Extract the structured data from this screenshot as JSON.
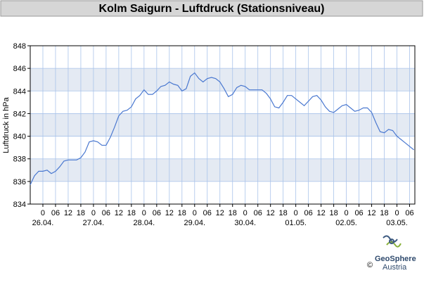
{
  "chart_data": {
    "type": "line",
    "title": "Kolm Saigurn - Luftdruck (Stationsniveau)",
    "y_label": "Luftdruck in hPa",
    "x": [
      -6,
      -4,
      -2,
      0,
      2,
      4,
      6,
      8,
      10,
      12,
      14,
      16,
      18,
      20,
      22,
      24,
      26,
      28,
      30,
      32,
      34,
      36,
      38,
      40,
      42,
      44,
      46,
      48,
      50,
      52,
      54,
      56,
      58,
      60,
      62,
      64,
      66,
      68,
      70,
      72,
      74,
      76,
      78,
      80,
      82,
      84,
      86,
      88,
      90,
      92,
      94,
      96,
      98,
      100,
      102,
      104,
      106,
      108,
      110,
      112,
      114,
      116,
      118,
      120,
      122,
      124,
      126,
      128,
      130,
      132,
      134,
      136,
      138,
      140,
      142,
      144,
      146,
      148,
      150,
      152,
      154,
      156,
      158,
      160,
      162,
      164,
      166,
      168,
      170,
      172,
      174,
      176
    ],
    "series": [
      {
        "name": "Luftdruck",
        "color": "#4a78d0",
        "values": [
          835.7,
          836.5,
          836.9,
          836.9,
          837.0,
          836.7,
          836.9,
          837.3,
          837.8,
          837.9,
          837.9,
          837.9,
          838.1,
          838.6,
          839.5,
          839.6,
          839.5,
          839.2,
          839.2,
          839.9,
          840.8,
          841.8,
          842.2,
          842.3,
          842.6,
          843.3,
          843.6,
          844.1,
          843.7,
          843.7,
          844.0,
          844.4,
          844.5,
          844.8,
          844.6,
          844.5,
          844.0,
          844.2,
          845.3,
          845.6,
          845.1,
          844.8,
          845.1,
          845.2,
          845.1,
          844.8,
          844.2,
          843.5,
          843.7,
          844.3,
          844.5,
          844.4,
          844.1,
          844.1,
          844.1,
          844.1,
          843.8,
          843.3,
          842.6,
          842.5,
          843.0,
          843.6,
          843.6,
          843.3,
          843.0,
          842.7,
          843.1,
          843.5,
          843.6,
          843.2,
          842.6,
          842.2,
          842.1,
          842.4,
          842.7,
          842.8,
          842.5,
          842.2,
          842.3,
          842.5,
          842.5,
          842.1,
          841.2,
          840.4,
          840.3,
          840.6,
          840.5,
          840.0,
          839.7,
          839.4,
          839.1,
          838.8
        ]
      }
    ],
    "xlim": [
      -6,
      176.5
    ],
    "ylim": [
      834,
      848
    ],
    "yticks": [
      834,
      836,
      838,
      840,
      842,
      844,
      846,
      848
    ],
    "xticks": [
      {
        "value": 0,
        "label": "0"
      },
      {
        "value": 6,
        "label": "06"
      },
      {
        "value": 12,
        "label": "12"
      },
      {
        "value": 18,
        "label": "18"
      },
      {
        "value": 24,
        "label": "0"
      },
      {
        "value": 30,
        "label": "06"
      },
      {
        "value": 36,
        "label": "12"
      },
      {
        "value": 42,
        "label": "18"
      },
      {
        "value": 48,
        "label": "0"
      },
      {
        "value": 54,
        "label": "06"
      },
      {
        "value": 60,
        "label": "12"
      },
      {
        "value": 66,
        "label": "18"
      },
      {
        "value": 72,
        "label": "0"
      },
      {
        "value": 78,
        "label": "06"
      },
      {
        "value": 84,
        "label": "12"
      },
      {
        "value": 90,
        "label": "18"
      },
      {
        "value": 96,
        "label": "0"
      },
      {
        "value": 102,
        "label": "06"
      },
      {
        "value": 108,
        "label": "12"
      },
      {
        "value": 114,
        "label": "18"
      },
      {
        "value": 120,
        "label": "0"
      },
      {
        "value": 126,
        "label": "06"
      },
      {
        "value": 132,
        "label": "12"
      },
      {
        "value": 138,
        "label": "18"
      },
      {
        "value": 144,
        "label": "0"
      },
      {
        "value": 150,
        "label": "06"
      },
      {
        "value": 156,
        "label": "12"
      },
      {
        "value": 162,
        "label": "18"
      },
      {
        "value": 168,
        "label": "0"
      },
      {
        "value": 174,
        "label": "06"
      }
    ],
    "date_labels": [
      {
        "value": 0,
        "label": "26.04."
      },
      {
        "value": 24,
        "label": "27.04."
      },
      {
        "value": 48,
        "label": "28.04."
      },
      {
        "value": 72,
        "label": "29.04."
      },
      {
        "value": 96,
        "label": "30.04."
      },
      {
        "value": 120,
        "label": "01.05."
      },
      {
        "value": 144,
        "label": "02.05."
      },
      {
        "value": 168,
        "label": "03.05."
      }
    ],
    "grid": true,
    "band_color": "#e4eaf3",
    "logo": {
      "copyright": "©",
      "name": "GeoSphere",
      "sub": "Austria"
    }
  }
}
